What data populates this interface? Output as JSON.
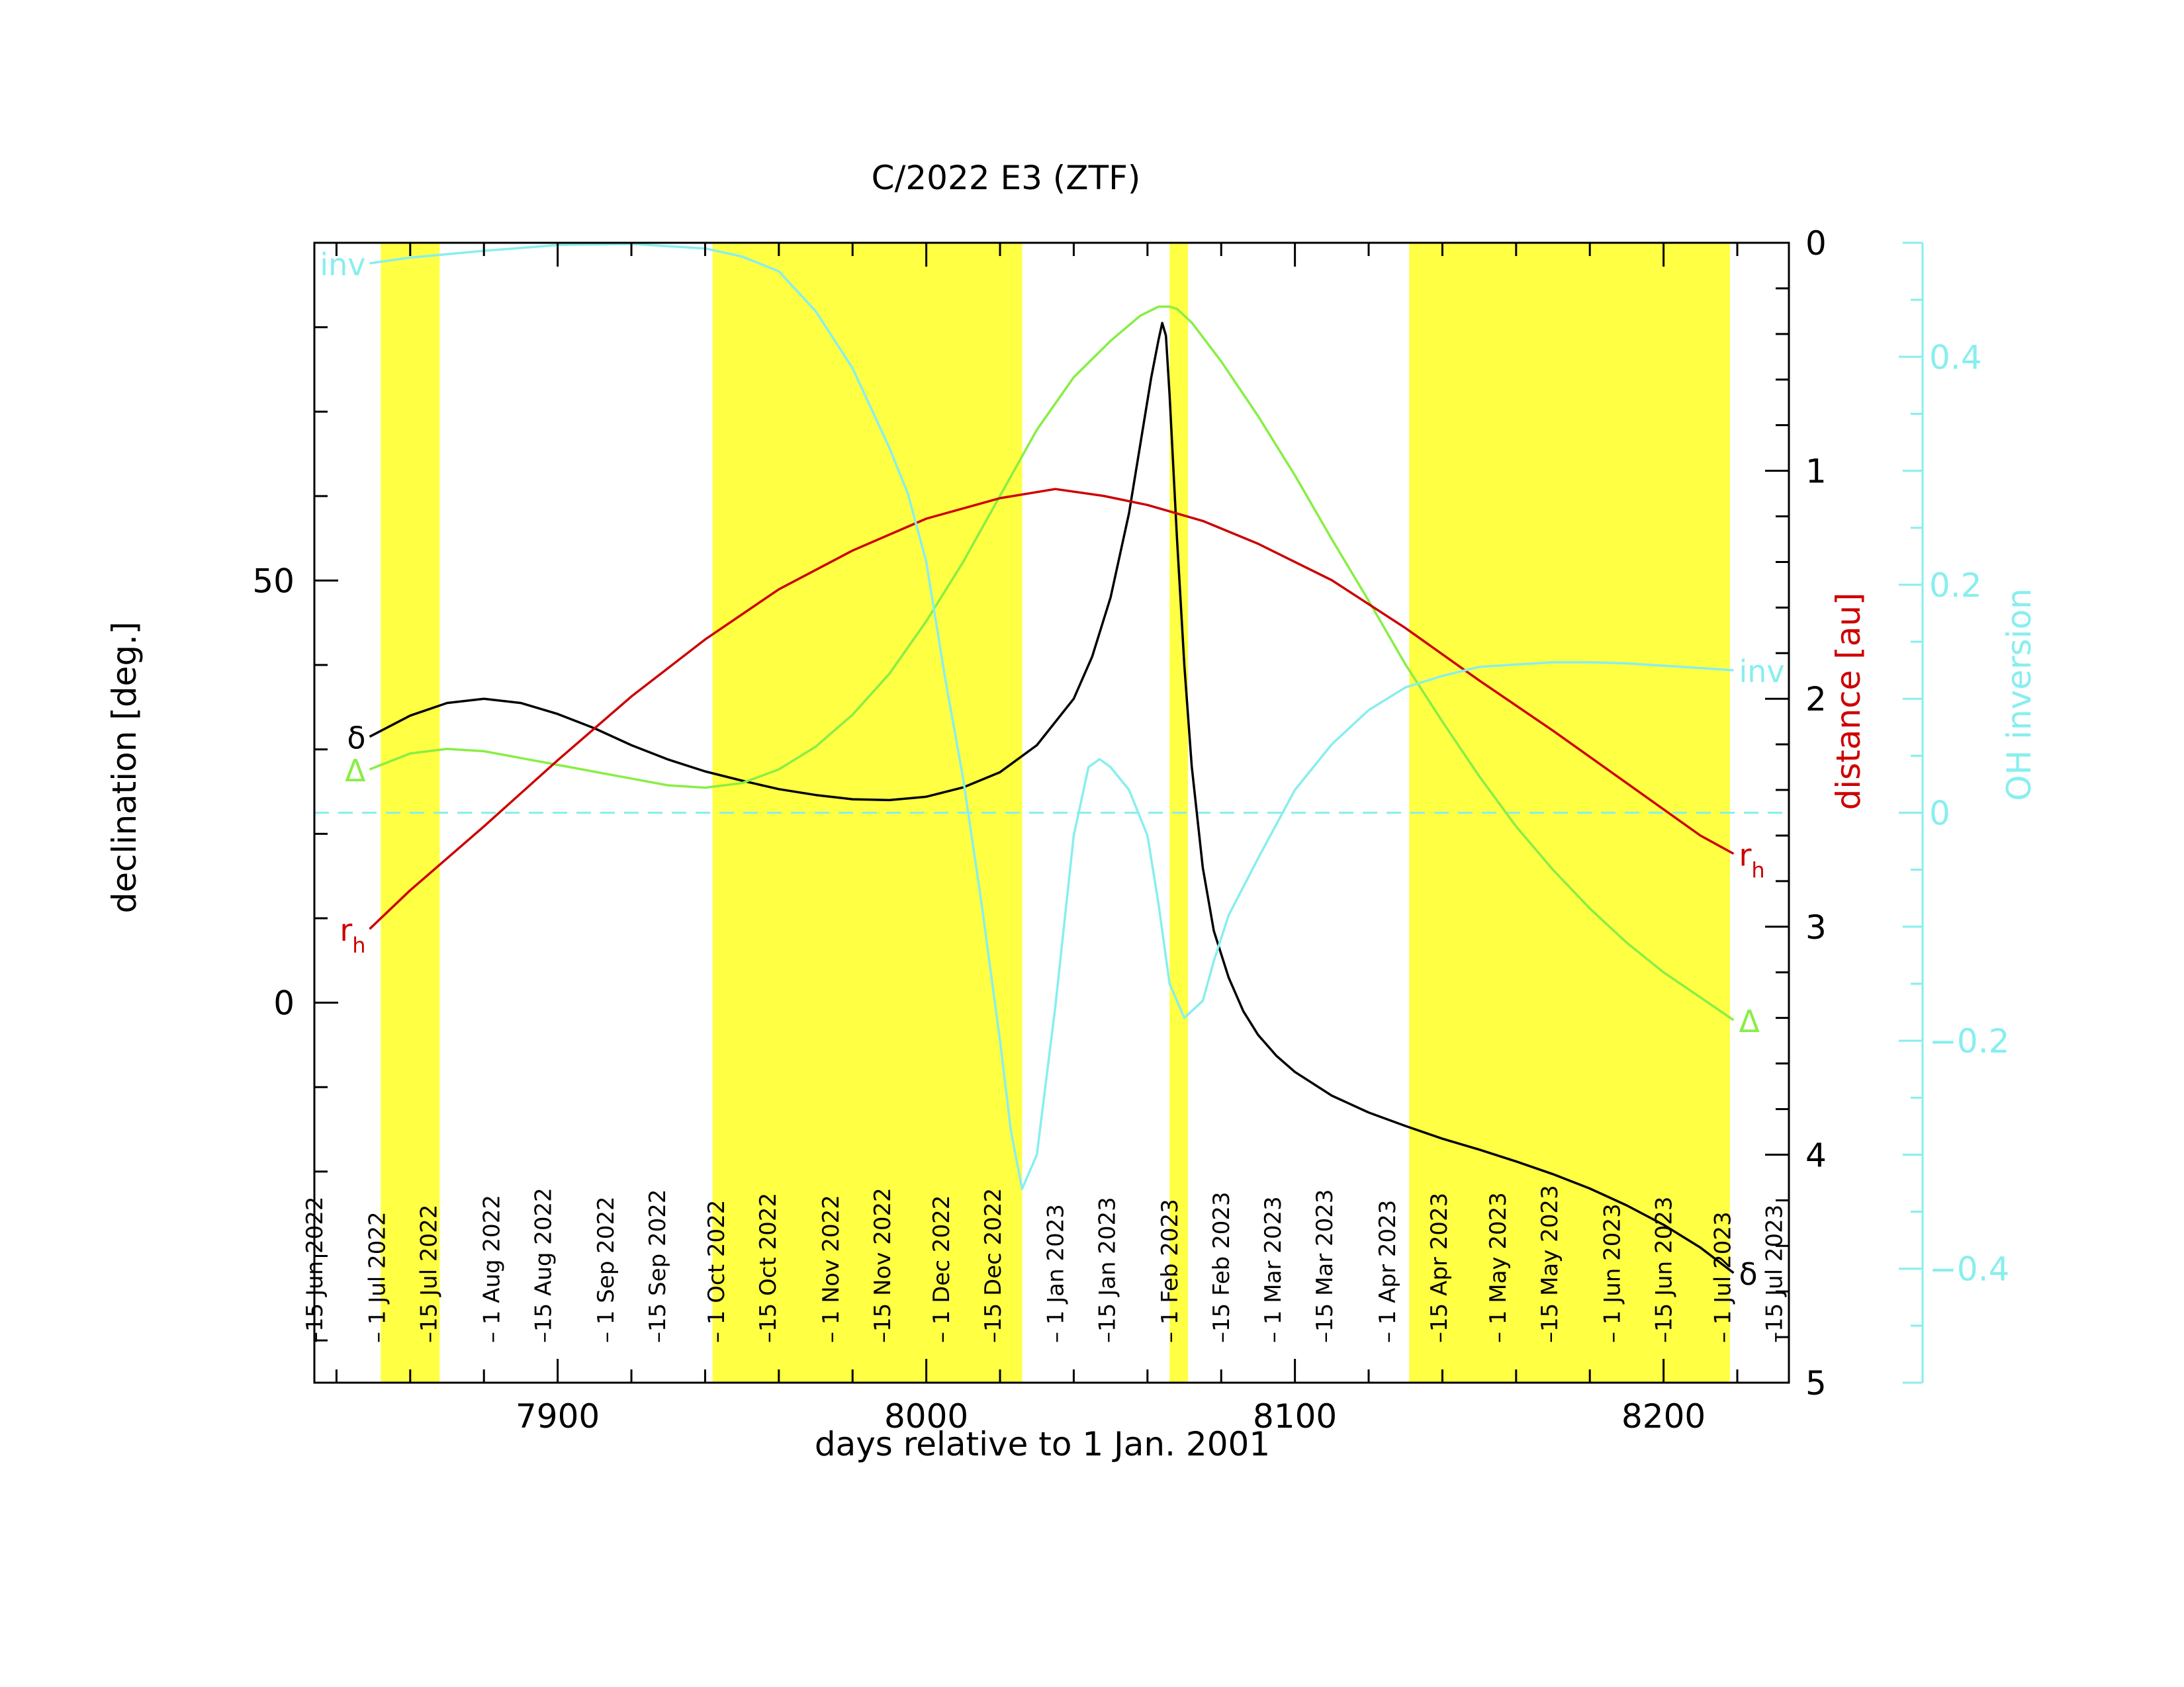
{
  "chart_data": {
    "type": "line",
    "title": "C/2022 E3 (ZTF)",
    "xlabel": "days relative to 1 Jan. 2001",
    "xlim": [
      7834,
      8234
    ],
    "x_ticks": [
      7900,
      8000,
      8100,
      8200
    ],
    "left_axis": {
      "label": "declination [deg.]",
      "ylim": [
        -45,
        90
      ],
      "ticks": [
        0,
        50
      ]
    },
    "right_axis_distance": {
      "label": "distance [au]",
      "ylim": [
        0,
        5
      ],
      "inverted": true,
      "ticks": [
        0,
        1,
        2,
        3,
        4,
        5
      ]
    },
    "right_axis_oh": {
      "label": "OH inversion",
      "ylim": [
        -0.5,
        0.5
      ],
      "ticks": [
        -0.4,
        -0.2,
        0,
        0.2,
        0.4
      ],
      "tick_labels": [
        "−0.4",
        "−0.2",
        "0",
        "0.2",
        "0.4"
      ],
      "zero_line": 0
    },
    "date_labels": [
      {
        "x": 7834,
        "label": "–15 Jun 2022"
      },
      {
        "x": 7851,
        "label": "– 1 Jul 2022"
      },
      {
        "x": 7865,
        "label": "–15 Jul 2022"
      },
      {
        "x": 7882,
        "label": "– 1 Aug 2022"
      },
      {
        "x": 7896,
        "label": "–15 Aug 2022"
      },
      {
        "x": 7913,
        "label": "– 1 Sep 2022"
      },
      {
        "x": 7927,
        "label": "–15 Sep 2022"
      },
      {
        "x": 7943,
        "label": "– 1 Oct 2022"
      },
      {
        "x": 7957,
        "label": "–15 Oct 2022"
      },
      {
        "x": 7974,
        "label": "– 1 Nov 2022"
      },
      {
        "x": 7988,
        "label": "–15 Nov 2022"
      },
      {
        "x": 8004,
        "label": "– 1 Dec 2022"
      },
      {
        "x": 8018,
        "label": "–15 Dec 2022"
      },
      {
        "x": 8035,
        "label": "– 1 Jan 2023"
      },
      {
        "x": 8049,
        "label": "–15 Jan 2023"
      },
      {
        "x": 8066,
        "label": "– 1 Feb 2023"
      },
      {
        "x": 8080,
        "label": "–15 Feb 2023"
      },
      {
        "x": 8094,
        "label": "– 1 Mar 2023"
      },
      {
        "x": 8108,
        "label": "–15 Mar 2023"
      },
      {
        "x": 8125,
        "label": "– 1 Apr 2023"
      },
      {
        "x": 8139,
        "label": "–15 Apr 2023"
      },
      {
        "x": 8155,
        "label": "– 1 May 2023"
      },
      {
        "x": 8169,
        "label": "–15 May 2023"
      },
      {
        "x": 8186,
        "label": "– 1 Jun 2023"
      },
      {
        "x": 8200,
        "label": "–15 Jun 2023"
      },
      {
        "x": 8216,
        "label": "– 1 Jul 2023"
      },
      {
        "x": 8230,
        "label": "–15 Jul 2023"
      }
    ],
    "shaded_intervals": [
      [
        7852,
        7868
      ],
      [
        7942,
        8026
      ],
      [
        8066,
        8071
      ],
      [
        8131,
        8218
      ]
    ],
    "series": [
      {
        "name": "δ",
        "axis": "left",
        "color": "#000000",
        "x": [
          7849,
          7860,
          7870,
          7880,
          7890,
          7900,
          7910,
          7920,
          7930,
          7940,
          7950,
          7960,
          7970,
          7980,
          7990,
          8000,
          8010,
          8020,
          8030,
          8040,
          8045,
          8050,
          8055,
          8058,
          8061,
          8063,
          8064,
          8065,
          8066,
          8068,
          8070,
          8072,
          8075,
          8078,
          8082,
          8086,
          8090,
          8095,
          8100,
          8110,
          8120,
          8130,
          8140,
          8150,
          8160,
          8170,
          8180,
          8190,
          8200,
          8210,
          8219
        ],
        "y": [
          31.5,
          34,
          35.5,
          36,
          35.5,
          34.2,
          32.5,
          30.5,
          28.8,
          27.4,
          26.3,
          25.3,
          24.6,
          24.1,
          24,
          24.4,
          25.5,
          27.3,
          30.5,
          36,
          41,
          48,
          58,
          66,
          74,
          78.5,
          80.5,
          79,
          72,
          55,
          40,
          28,
          16,
          8.5,
          3,
          -1,
          -3.8,
          -6.3,
          -8.2,
          -11,
          -13,
          -14.6,
          -16.1,
          -17.4,
          -18.8,
          -20.3,
          -22,
          -24,
          -26.3,
          -29,
          -32
        ]
      },
      {
        "name": "Δ",
        "axis": "distance",
        "color": "#88ee44",
        "x": [
          7849,
          7860,
          7870,
          7880,
          7890,
          7900,
          7910,
          7920,
          7930,
          7940,
          7950,
          7960,
          7970,
          7980,
          7990,
          8000,
          8010,
          8020,
          8030,
          8040,
          8050,
          8058,
          8063,
          8066,
          8068,
          8072,
          8080,
          8090,
          8100,
          8110,
          8120,
          8130,
          8140,
          8150,
          8160,
          8170,
          8180,
          8190,
          8200,
          8210,
          8219
        ],
        "y": [
          2.31,
          2.24,
          2.22,
          2.23,
          2.26,
          2.29,
          2.32,
          2.35,
          2.38,
          2.39,
          2.37,
          2.31,
          2.21,
          2.07,
          1.89,
          1.66,
          1.4,
          1.11,
          0.82,
          0.59,
          0.43,
          0.32,
          0.28,
          0.28,
          0.29,
          0.35,
          0.52,
          0.76,
          1.02,
          1.3,
          1.57,
          1.85,
          2.1,
          2.34,
          2.56,
          2.75,
          2.92,
          3.07,
          3.2,
          3.31,
          3.41
        ]
      },
      {
        "name": "rh",
        "axis": "distance",
        "color": "#cc0000",
        "x": [
          7849,
          7860,
          7880,
          7900,
          7920,
          7940,
          7960,
          7980,
          8000,
          8020,
          8035,
          8048,
          8060,
          8075,
          8090,
          8110,
          8130,
          8150,
          8170,
          8190,
          8210,
          8219
        ],
        "y": [
          3.01,
          2.84,
          2.56,
          2.27,
          1.99,
          1.74,
          1.52,
          1.35,
          1.21,
          1.12,
          1.08,
          1.11,
          1.15,
          1.22,
          1.32,
          1.48,
          1.69,
          1.92,
          2.14,
          2.37,
          2.6,
          2.68
        ]
      },
      {
        "name": "inv",
        "axis": "oh",
        "color": "#88eeee",
        "x": [
          7849,
          7860,
          7880,
          7900,
          7920,
          7940,
          7950,
          7960,
          7970,
          7980,
          7990,
          7995,
          8000,
          8005,
          8010,
          8015,
          8020,
          8023,
          8026,
          8030,
          8035,
          8040,
          8044,
          8047,
          8050,
          8055,
          8060,
          8063,
          8066,
          8070,
          8075,
          8078,
          8082,
          8090,
          8100,
          8110,
          8120,
          8130,
          8140,
          8150,
          8160,
          8170,
          8180,
          8190,
          8200,
          8210,
          8219
        ],
        "y": [
          0.482,
          0.487,
          0.493,
          0.498,
          0.499,
          0.495,
          0.488,
          0.475,
          0.44,
          0.39,
          0.32,
          0.28,
          0.22,
          0.12,
          0.03,
          -0.08,
          -0.2,
          -0.28,
          -0.33,
          -0.3,
          -0.17,
          -0.02,
          0.04,
          0.047,
          0.04,
          0.02,
          -0.02,
          -0.08,
          -0.15,
          -0.18,
          -0.165,
          -0.13,
          -0.09,
          -0.04,
          0.02,
          0.06,
          0.09,
          0.11,
          0.12,
          0.128,
          0.13,
          0.132,
          0.132,
          0.131,
          0.129,
          0.127,
          0.125
        ]
      }
    ],
    "series_labels": [
      {
        "series": "δ",
        "text": "δ",
        "x": 7849,
        "y": 31.5,
        "axis": "left",
        "side": "left"
      },
      {
        "series": "δ",
        "text": "δ",
        "x": 8219,
        "y": -32,
        "axis": "left",
        "side": "right"
      },
      {
        "series": "Δ",
        "text": "Δ",
        "x": 7849,
        "y": 2.31,
        "axis": "distance",
        "side": "left"
      },
      {
        "series": "Δ",
        "text": "Δ",
        "x": 8219,
        "y": 3.41,
        "axis": "distance",
        "side": "right"
      },
      {
        "series": "rh",
        "text": "r",
        "sub": "h",
        "x": 7849,
        "y": 3.01,
        "axis": "distance",
        "side": "left"
      },
      {
        "series": "rh",
        "text": "r",
        "sub": "h",
        "x": 8219,
        "y": 2.68,
        "axis": "distance",
        "side": "right"
      },
      {
        "series": "inv",
        "text": "inv",
        "x": 7849,
        "y": 0.482,
        "axis": "oh",
        "side": "left"
      },
      {
        "series": "inv",
        "text": "inv",
        "x": 8219,
        "y": 0.125,
        "axis": "oh",
        "side": "right"
      }
    ],
    "colors": {
      "shade": "#ffff44",
      "axis": "#000000",
      "distance_label": "#cc0000",
      "oh_axis": "#88eeee",
      "declination": "#000000",
      "delta": "#88ee44",
      "rh": "#cc0000",
      "inv": "#88eeee"
    }
  }
}
